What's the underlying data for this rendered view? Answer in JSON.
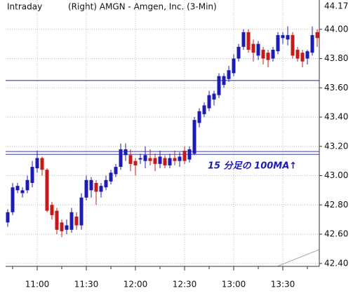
{
  "chart_data": {
    "type": "candlestick",
    "label": "Intraday",
    "title": "(Right)  AMGN - Amgen, Inc.  (3-Min)",
    "annotation": "15 分足の 100MA↑",
    "categories": [
      null,
      null,
      null,
      null,
      null,
      null,
      "11:00",
      null,
      null,
      null,
      null,
      null,
      null,
      null,
      null,
      null,
      "11:30",
      null,
      null,
      null,
      null,
      null,
      null,
      null,
      null,
      null,
      "12:00",
      null,
      null,
      null,
      null,
      null,
      null,
      null,
      null,
      null,
      "12:30",
      null,
      null,
      null,
      null,
      null,
      null,
      null,
      null,
      null,
      "13:00",
      null,
      null,
      null,
      null,
      null,
      null,
      null,
      null,
      null,
      "13:30",
      null,
      null,
      null,
      null,
      null,
      null,
      null
    ],
    "open": [
      42.68,
      42.75,
      42.9,
      42.88,
      42.9,
      42.95,
      43.05,
      43.12,
      43.04,
      42.8,
      42.76,
      42.68,
      42.63,
      42.63,
      42.72,
      42.66,
      42.85,
      42.9,
      42.95,
      42.89,
      42.92,
      42.96,
      43.01,
      43.06,
      43.14,
      43.14,
      43.1,
      43.11,
      43.1,
      43.12,
      43.12,
      43.08,
      43.12,
      43.07,
      43.12,
      43.1,
      43.17,
      43.11,
      43.15,
      43.36,
      43.42,
      43.46,
      43.52,
      43.55,
      43.62,
      43.66,
      43.7,
      43.8,
      43.88,
      43.98,
      43.9,
      43.82,
      43.86,
      43.84,
      43.8,
      43.85,
      43.94,
      43.93,
      43.96,
      43.86,
      43.84,
      43.8,
      43.84,
      43.98
    ],
    "high": [
      42.77,
      42.95,
      42.95,
      42.92,
      43.0,
      43.1,
      43.17,
      43.13,
      43.05,
      42.82,
      42.78,
      42.7,
      42.7,
      42.78,
      42.75,
      42.88,
      43.0,
      42.99,
      42.97,
      42.95,
      43.0,
      43.04,
      43.08,
      43.22,
      43.22,
      43.18,
      43.12,
      43.15,
      43.2,
      43.18,
      43.15,
      43.17,
      43.14,
      43.15,
      43.17,
      43.16,
      43.2,
      43.2,
      43.4,
      43.46,
      43.5,
      43.58,
      43.58,
      43.7,
      43.7,
      43.75,
      43.83,
      43.9,
      44.0,
      44.0,
      43.93,
      43.92,
      43.88,
      43.86,
      43.88,
      43.98,
      43.98,
      44.02,
      43.98,
      43.88,
      43.86,
      43.86,
      44.02,
      44.0
    ],
    "low": [
      42.65,
      42.73,
      42.88,
      42.85,
      42.88,
      42.92,
      43.02,
      43.0,
      42.75,
      42.7,
      42.6,
      42.58,
      42.6,
      42.61,
      42.63,
      42.63,
      42.83,
      42.85,
      42.8,
      42.85,
      42.9,
      42.94,
      42.99,
      43.04,
      43.1,
      43.03,
      43.0,
      43.08,
      43.05,
      43.07,
      43.03,
      43.05,
      43.05,
      43.05,
      43.07,
      43.06,
      43.08,
      43.09,
      43.14,
      43.33,
      43.4,
      43.44,
      43.48,
      43.53,
      43.6,
      43.64,
      43.68,
      43.78,
      43.86,
      43.84,
      43.78,
      43.79,
      43.76,
      43.74,
      43.78,
      43.83,
      43.9,
      43.89,
      43.8,
      43.78,
      43.74,
      43.76,
      43.82,
      43.88
    ],
    "close": [
      42.75,
      42.92,
      42.93,
      42.9,
      42.97,
      43.06,
      43.12,
      43.04,
      42.76,
      42.73,
      42.63,
      42.62,
      42.66,
      42.75,
      42.66,
      42.85,
      42.97,
      42.97,
      42.89,
      42.93,
      42.97,
      43.02,
      43.06,
      43.18,
      43.18,
      43.08,
      43.07,
      43.12,
      43.14,
      43.1,
      43.08,
      43.13,
      43.07,
      43.12,
      43.1,
      43.13,
      43.1,
      43.18,
      43.38,
      43.44,
      43.48,
      43.55,
      43.56,
      43.68,
      43.68,
      43.72,
      43.8,
      43.88,
      43.98,
      43.86,
      43.84,
      43.9,
      43.8,
      43.79,
      43.86,
      43.96,
      43.96,
      43.96,
      43.82,
      43.8,
      43.78,
      43.85,
      43.96,
      43.94
    ],
    "up_color": "#1c1cb4",
    "down_color": "#c41a1a",
    "hlines": [
      {
        "value": 43.65,
        "color": "#2a2a70"
      },
      {
        "value": 43.165,
        "color": "#3b3bb0"
      },
      {
        "value": 43.145,
        "color": "#3b3bb0"
      }
    ],
    "price_marker": {
      "value": 44.17,
      "label": "44.17"
    },
    "ylim": [
      42.38,
      44.2
    ],
    "yticks": [
      {
        "value": 42.4,
        "label": "42.40"
      },
      {
        "value": 42.6,
        "label": "42.60"
      },
      {
        "value": 42.8,
        "label": "42.80"
      },
      {
        "value": 43.0,
        "label": "43.00"
      },
      {
        "value": 43.2,
        "label": "43.20"
      },
      {
        "value": 43.4,
        "label": "43.40"
      },
      {
        "value": 43.6,
        "label": "43.60"
      },
      {
        "value": 43.8,
        "label": "43.80"
      },
      {
        "value": 44.0,
        "label": "44.00"
      }
    ],
    "grid": true
  }
}
